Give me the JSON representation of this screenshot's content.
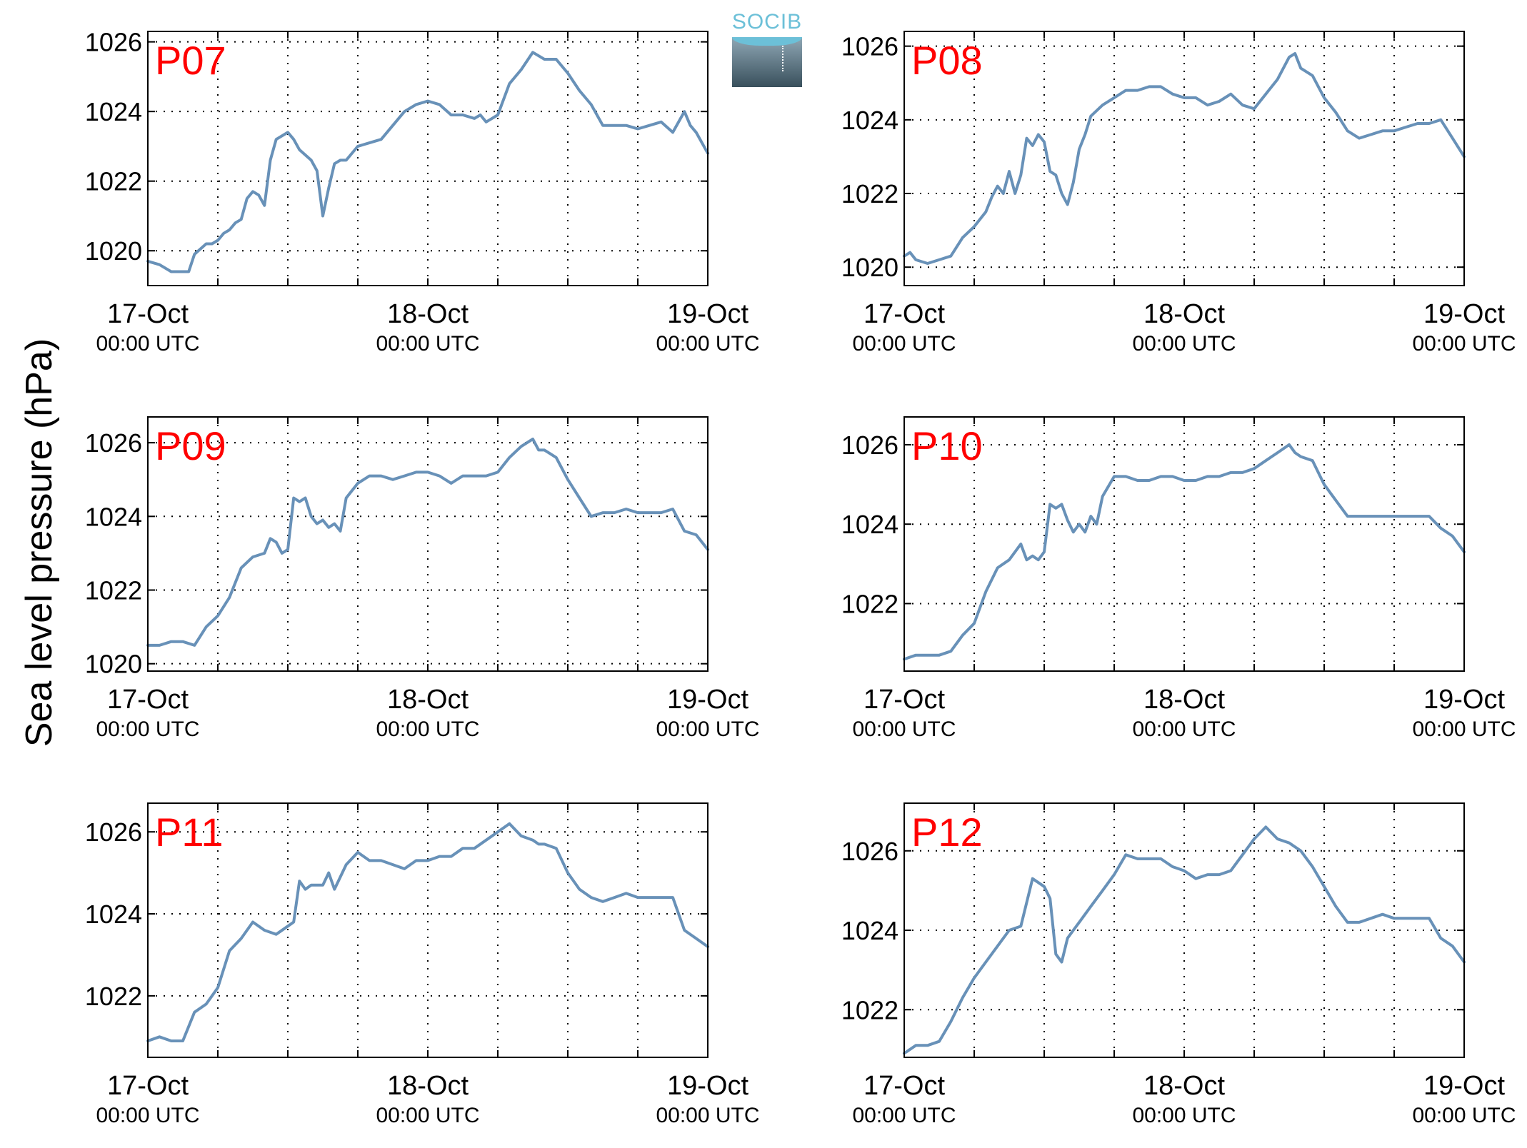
{
  "figure": {
    "ylabel": "Sea level pressure (hPa)",
    "logo": "SOCIB"
  },
  "chart_data": [
    {
      "type": "line",
      "title": "P07",
      "xlim": [
        0,
        48
      ],
      "ylim": [
        1019,
        1026.3
      ],
      "yticks": [
        1020,
        1022,
        1024,
        1026
      ],
      "xticks": [
        {
          "x": 0,
          "l1": "17-Oct",
          "l2": "00:00 UTC"
        },
        {
          "x": 24,
          "l1": "18-Oct",
          "l2": "00:00 UTC"
        },
        {
          "x": 48,
          "l1": "19-Oct",
          "l2": "00:00 UTC"
        }
      ],
      "xgrid": [
        6,
        12,
        18,
        24,
        30,
        36,
        42
      ],
      "series": [
        {
          "color": "#6891b8",
          "x": [
            0,
            1,
            2,
            3,
            3.5,
            4,
            5,
            5.5,
            6,
            6.5,
            7,
            7.5,
            8,
            8.5,
            9,
            9.5,
            10,
            10.5,
            11,
            12,
            12.5,
            13,
            14,
            14.5,
            15,
            15.5,
            16,
            16.5,
            17,
            18,
            19,
            20,
            21,
            22,
            23,
            24,
            25,
            26,
            27,
            28,
            28.5,
            29,
            29.5,
            30,
            31,
            32,
            33,
            34,
            35,
            36,
            37,
            38,
            39,
            40,
            41,
            42,
            43,
            44,
            45,
            46,
            46.5,
            47,
            48
          ],
          "y": [
            1019.7,
            1019.6,
            1019.4,
            1019.4,
            1019.4,
            1019.9,
            1020.2,
            1020.2,
            1020.3,
            1020.5,
            1020.6,
            1020.8,
            1020.9,
            1021.5,
            1021.7,
            1021.6,
            1021.3,
            1022.6,
            1023.2,
            1023.4,
            1023.2,
            1022.9,
            1022.6,
            1022.3,
            1021,
            1021.8,
            1022.5,
            1022.6,
            1022.6,
            1023,
            1023.1,
            1023.2,
            1023.6,
            1024,
            1024.2,
            1024.3,
            1024.2,
            1023.9,
            1023.9,
            1023.8,
            1023.9,
            1023.7,
            1023.8,
            1023.9,
            1024.8,
            1025.2,
            1025.7,
            1025.5,
            1025.5,
            1025.1,
            1024.6,
            1024.2,
            1023.6,
            1023.6,
            1023.6,
            1023.5,
            1023.6,
            1023.7,
            1023.4,
            1024,
            1023.6,
            1023.4,
            1022.8
          ]
        }
      ]
    },
    {
      "type": "line",
      "title": "P08",
      "xlim": [
        0,
        48
      ],
      "ylim": [
        1019.5,
        1026.4
      ],
      "yticks": [
        1020,
        1022,
        1024,
        1026
      ],
      "xticks": [
        {
          "x": 0,
          "l1": "17-Oct",
          "l2": "00:00 UTC"
        },
        {
          "x": 24,
          "l1": "18-Oct",
          "l2": "00:00 UTC"
        },
        {
          "x": 48,
          "l1": "19-Oct",
          "l2": "00:00 UTC"
        }
      ],
      "xgrid": [
        6,
        12,
        18,
        24,
        30,
        36,
        42
      ],
      "series": [
        {
          "color": "#6891b8",
          "x": [
            0,
            0.5,
            1,
            2,
            3,
            4,
            5,
            6,
            7,
            7.5,
            8,
            8.5,
            9,
            9.5,
            10,
            10.5,
            11,
            11.5,
            12,
            12.5,
            13,
            13.5,
            14,
            14.5,
            15,
            15.5,
            16,
            17,
            18,
            19,
            20,
            21,
            22,
            23,
            24,
            25,
            26,
            27,
            28,
            29,
            30,
            31,
            32,
            33,
            33.5,
            34,
            35,
            36,
            37,
            38,
            39,
            40,
            41,
            42,
            43,
            44,
            45,
            46,
            47,
            48
          ],
          "y": [
            1020.3,
            1020.4,
            1020.2,
            1020.1,
            1020.2,
            1020.3,
            1020.8,
            1021.1,
            1021.5,
            1021.9,
            1022.2,
            1022.0,
            1022.6,
            1022.0,
            1022.5,
            1023.5,
            1023.3,
            1023.6,
            1023.4,
            1022.6,
            1022.5,
            1022.0,
            1021.7,
            1022.3,
            1023.2,
            1023.6,
            1024.1,
            1024.4,
            1024.6,
            1024.8,
            1024.8,
            1024.9,
            1024.9,
            1024.7,
            1024.6,
            1024.6,
            1024.4,
            1024.5,
            1024.7,
            1024.4,
            1024.3,
            1024.7,
            1025.1,
            1025.7,
            1025.8,
            1025.4,
            1025.2,
            1024.6,
            1024.2,
            1023.7,
            1023.5,
            1023.6,
            1023.7,
            1023.7,
            1023.8,
            1023.9,
            1023.9,
            1024.0,
            1023.5,
            1023.0
          ]
        }
      ]
    },
    {
      "type": "line",
      "title": "P09",
      "xlim": [
        0,
        48
      ],
      "ylim": [
        1019.8,
        1026.7
      ],
      "yticks": [
        1020,
        1022,
        1024,
        1026
      ],
      "xticks": [
        {
          "x": 0,
          "l1": "17-Oct",
          "l2": "00:00 UTC"
        },
        {
          "x": 24,
          "l1": "18-Oct",
          "l2": "00:00 UTC"
        },
        {
          "x": 48,
          "l1": "19-Oct",
          "l2": "00:00 UTC"
        }
      ],
      "xgrid": [
        6,
        12,
        18,
        24,
        30,
        36,
        42
      ],
      "series": [
        {
          "color": "#6891b8",
          "x": [
            0,
            1,
            2,
            3,
            4,
            5,
            6,
            7,
            8,
            9,
            10,
            10.5,
            11,
            11.5,
            12,
            12.5,
            13,
            13.5,
            14,
            14.5,
            15,
            15.5,
            16,
            16.5,
            17,
            18,
            19,
            20,
            21,
            22,
            23,
            24,
            25,
            26,
            27,
            28,
            29,
            30,
            31,
            32,
            33,
            33.5,
            34,
            35,
            36,
            37,
            38,
            39,
            40,
            41,
            42,
            43,
            44,
            45,
            46,
            47,
            48
          ],
          "y": [
            1020.5,
            1020.5,
            1020.6,
            1020.6,
            1020.5,
            1021.0,
            1021.3,
            1021.8,
            1022.6,
            1022.9,
            1023.0,
            1023.4,
            1023.3,
            1023.0,
            1023.1,
            1024.5,
            1024.4,
            1024.5,
            1024.0,
            1023.8,
            1023.9,
            1023.7,
            1023.8,
            1023.6,
            1024.5,
            1024.9,
            1025.1,
            1025.1,
            1025.0,
            1025.1,
            1025.2,
            1025.2,
            1025.1,
            1024.9,
            1025.1,
            1025.1,
            1025.1,
            1025.2,
            1025.6,
            1025.9,
            1026.1,
            1025.8,
            1025.8,
            1025.6,
            1025.0,
            1024.5,
            1024.0,
            1024.1,
            1024.1,
            1024.2,
            1024.1,
            1024.1,
            1024.1,
            1024.2,
            1023.6,
            1023.5,
            1023.1
          ]
        }
      ]
    },
    {
      "type": "line",
      "title": "P10",
      "xlim": [
        0,
        48
      ],
      "ylim": [
        1020.3,
        1026.7
      ],
      "yticks": [
        1022,
        1024,
        1026
      ],
      "xticks": [
        {
          "x": 0,
          "l1": "17-Oct",
          "l2": "00:00 UTC"
        },
        {
          "x": 24,
          "l1": "18-Oct",
          "l2": "00:00 UTC"
        },
        {
          "x": 48,
          "l1": "19-Oct",
          "l2": "00:00 UTC"
        }
      ],
      "xgrid": [
        6,
        12,
        18,
        24,
        30,
        36,
        42
      ],
      "series": [
        {
          "color": "#6891b8",
          "x": [
            0,
            1,
            2,
            3,
            4,
            5,
            6,
            7,
            8,
            9,
            10,
            10.5,
            11,
            11.5,
            12,
            12.5,
            13,
            13.5,
            14,
            14.5,
            15,
            15.5,
            16,
            16.5,
            17,
            18,
            19,
            20,
            21,
            22,
            23,
            24,
            25,
            26,
            27,
            28,
            29,
            30,
            31,
            32,
            33,
            33.5,
            34,
            35,
            36,
            37,
            38,
            39,
            40,
            41,
            42,
            43,
            44,
            45,
            46,
            47,
            48
          ],
          "y": [
            1020.6,
            1020.7,
            1020.7,
            1020.7,
            1020.8,
            1021.2,
            1021.5,
            1022.3,
            1022.9,
            1023.1,
            1023.5,
            1023.1,
            1023.2,
            1023.1,
            1023.3,
            1024.5,
            1024.4,
            1024.5,
            1024.1,
            1023.8,
            1024.0,
            1023.8,
            1024.2,
            1024.0,
            1024.7,
            1025.2,
            1025.2,
            1025.1,
            1025.1,
            1025.2,
            1025.2,
            1025.1,
            1025.1,
            1025.2,
            1025.2,
            1025.3,
            1025.3,
            1025.4,
            1025.6,
            1025.8,
            1026.0,
            1025.8,
            1025.7,
            1025.6,
            1025.0,
            1024.6,
            1024.2,
            1024.2,
            1024.2,
            1024.2,
            1024.2,
            1024.2,
            1024.2,
            1024.2,
            1023.9,
            1023.7,
            1023.3
          ]
        }
      ]
    },
    {
      "type": "line",
      "title": "P11",
      "xlim": [
        0,
        48
      ],
      "ylim": [
        1020.5,
        1026.7
      ],
      "yticks": [
        1022,
        1024,
        1026
      ],
      "xticks": [
        {
          "x": 0,
          "l1": "17-Oct",
          "l2": "00:00 UTC"
        },
        {
          "x": 24,
          "l1": "18-Oct",
          "l2": "00:00 UTC"
        },
        {
          "x": 48,
          "l1": "19-Oct",
          "l2": "00:00 UTC"
        }
      ],
      "xgrid": [
        6,
        12,
        18,
        24,
        30,
        36,
        42
      ],
      "series": [
        {
          "color": "#6891b8",
          "x": [
            0,
            1,
            2,
            3,
            4,
            5,
            6,
            7,
            8,
            9,
            10,
            11,
            12,
            12.5,
            13,
            13.5,
            14,
            14.5,
            15,
            15.5,
            16,
            16.5,
            17,
            18,
            19,
            20,
            21,
            22,
            23,
            24,
            25,
            26,
            27,
            28,
            29,
            30,
            31,
            32,
            33,
            33.5,
            34,
            35,
            36,
            37,
            38,
            39,
            40,
            41,
            42,
            43,
            44,
            45,
            46,
            47,
            48
          ],
          "y": [
            1020.9,
            1021.0,
            1020.9,
            1020.9,
            1021.6,
            1021.8,
            1022.2,
            1023.1,
            1023.4,
            1023.8,
            1023.6,
            1023.5,
            1023.7,
            1023.8,
            1024.8,
            1024.6,
            1024.7,
            1024.7,
            1024.7,
            1025.0,
            1024.6,
            1024.9,
            1025.2,
            1025.5,
            1025.3,
            1025.3,
            1025.2,
            1025.1,
            1025.3,
            1025.3,
            1025.4,
            1025.4,
            1025.6,
            1025.6,
            1025.8,
            1026.0,
            1026.2,
            1025.9,
            1025.8,
            1025.7,
            1025.7,
            1025.6,
            1025.0,
            1024.6,
            1024.4,
            1024.3,
            1024.4,
            1024.5,
            1024.4,
            1024.4,
            1024.4,
            1024.4,
            1023.6,
            1023.4,
            1023.2
          ]
        }
      ]
    },
    {
      "type": "line",
      "title": "P12",
      "xlim": [
        0,
        48
      ],
      "ylim": [
        1020.8,
        1027.2
      ],
      "yticks": [
        1022,
        1024,
        1026
      ],
      "xticks": [
        {
          "x": 0,
          "l1": "17-Oct",
          "l2": "00:00 UTC"
        },
        {
          "x": 24,
          "l1": "18-Oct",
          "l2": "00:00 UTC"
        },
        {
          "x": 48,
          "l1": "19-Oct",
          "l2": "00:00 UTC"
        }
      ],
      "xgrid": [
        6,
        12,
        18,
        24,
        30,
        36,
        42
      ],
      "series": [
        {
          "color": "#6891b8",
          "x": [
            0,
            1,
            2,
            3,
            4,
            5,
            6,
            7,
            8,
            9,
            10,
            11,
            11.5,
            12,
            12.5,
            13,
            13.5,
            14,
            14.5,
            15,
            15.5,
            16,
            17,
            18,
            19,
            20,
            21,
            22,
            23,
            24,
            25,
            26,
            27,
            28,
            29,
            30,
            31,
            32,
            33,
            34,
            35,
            36,
            37,
            38,
            39,
            40,
            41,
            42,
            43,
            44,
            45,
            46,
            47,
            48
          ],
          "y": [
            1020.9,
            1021.1,
            1021.1,
            1021.2,
            1021.7,
            1022.3,
            1022.8,
            1023.2,
            1023.6,
            1024.0,
            1024.1,
            1025.3,
            1025.2,
            1025.1,
            1024.8,
            1023.4,
            1023.2,
            1023.8,
            1024.0,
            1024.2,
            1024.4,
            1024.6,
            1025.0,
            1025.4,
            1025.9,
            1025.8,
            1025.8,
            1025.8,
            1025.6,
            1025.5,
            1025.3,
            1025.4,
            1025.4,
            1025.5,
            1025.9,
            1026.3,
            1026.6,
            1026.3,
            1026.2,
            1026.0,
            1025.6,
            1025.1,
            1024.6,
            1024.2,
            1024.2,
            1024.3,
            1024.4,
            1024.3,
            1024.3,
            1024.3,
            1024.3,
            1023.8,
            1023.6,
            1023.2
          ]
        }
      ]
    }
  ]
}
